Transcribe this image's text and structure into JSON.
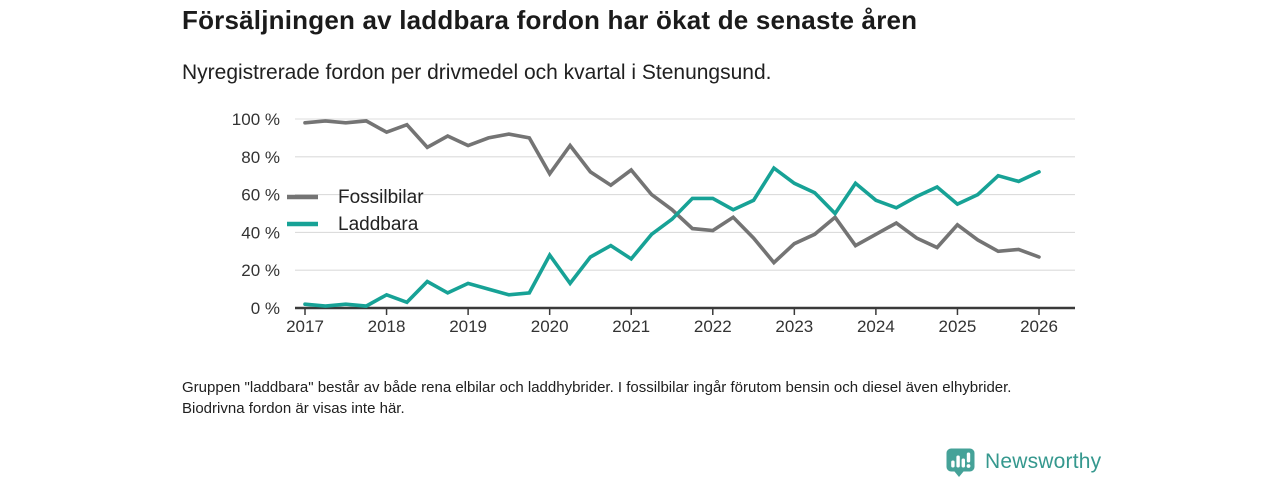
{
  "header": {
    "title": "Försäljningen av laddbara fordon har ökat de senaste åren",
    "subtitle": "Nyregistrerade fordon per drivmedel och kvartal i Stenungsund."
  },
  "chart_data": {
    "type": "line",
    "title": "Försäljningen av laddbara fordon har ökat de senaste åren",
    "subtitle": "Nyregistrerade fordon per drivmedel och kvartal i Stenungsund.",
    "unit": "%",
    "ylim": [
      0,
      100
    ],
    "grid": "horizontal",
    "legend_position": "inside-left",
    "y_tick_labels": [
      "0 %",
      "20 %",
      "40 %",
      "60 %",
      "80 %",
      "100 %"
    ],
    "x_tick_labels": [
      "2017",
      "2018",
      "2019",
      "2020",
      "2021",
      "2022",
      "2023",
      "2024",
      "2025",
      "2026"
    ],
    "x_quarters": [
      "2017 Q1",
      "2017 Q2",
      "2017 Q3",
      "2017 Q4",
      "2018 Q1",
      "2018 Q2",
      "2018 Q3",
      "2018 Q4",
      "2019 Q1",
      "2019 Q2",
      "2019 Q3",
      "2019 Q4",
      "2020 Q1",
      "2020 Q2",
      "2020 Q3",
      "2020 Q4",
      "2021 Q1",
      "2021 Q2",
      "2021 Q3",
      "2021 Q4",
      "2022 Q1",
      "2022 Q2",
      "2022 Q3",
      "2022 Q4",
      "2023 Q1",
      "2023 Q2",
      "2023 Q3",
      "2023 Q4",
      "2024 Q1",
      "2024 Q2",
      "2024 Q3",
      "2024 Q4",
      "2025 Q1",
      "2025 Q2",
      "2025 Q3",
      "2025 Q4",
      "2026 Q1"
    ],
    "series": [
      {
        "name": "Fossilbilar",
        "color": "#747474",
        "values": [
          98,
          99,
          98,
          99,
          93,
          97,
          85,
          91,
          86,
          90,
          92,
          90,
          71,
          86,
          72,
          65,
          73,
          60,
          52,
          42,
          41,
          48,
          37,
          24,
          34,
          39,
          48,
          33,
          39,
          45,
          37,
          32,
          44,
          36,
          30,
          31,
          27
        ]
      },
      {
        "name": "Laddbara",
        "color": "#17a296",
        "values": [
          2,
          1,
          2,
          1,
          7,
          3,
          14,
          8,
          13,
          10,
          7,
          8,
          28,
          13,
          27,
          33,
          26,
          39,
          47,
          58,
          58,
          52,
          57,
          74,
          66,
          61,
          50,
          66,
          57,
          53,
          59,
          64,
          55,
          60,
          70,
          67,
          72
        ]
      }
    ],
    "axis_color": "#3a3a3a",
    "gridline_color": "#dcdcdc",
    "tick_label_color": "#333333"
  },
  "footnote": {
    "text": "Gruppen \"laddbara\" består av både rena elbilar och laddhybrider. I fossilbilar ingår förutom bensin och diesel även elhybrider. Biodrivna fordon är visas inte här."
  },
  "logo": {
    "text": "Newsworthy",
    "badge_color": "#45a298",
    "text_color": "#35988e"
  }
}
